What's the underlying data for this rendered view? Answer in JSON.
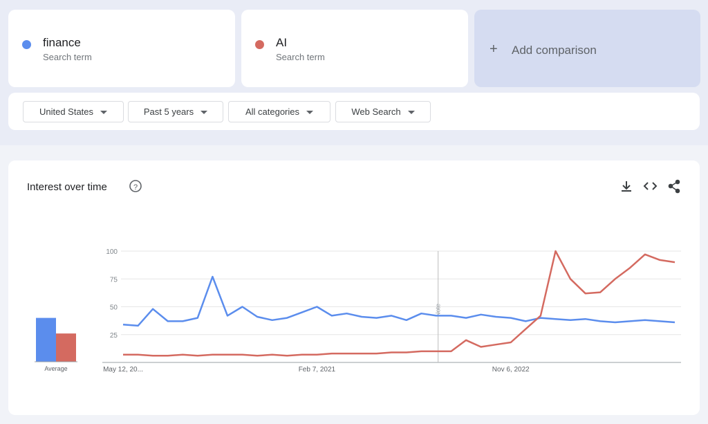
{
  "search_terms": [
    {
      "name": "finance",
      "label": "Search term"
    },
    {
      "name": "AI",
      "label": "Search term"
    }
  ],
  "add_comparison": "Add comparison",
  "filters": [
    "United States",
    "Past 5 years",
    "All categories",
    "Web Search"
  ],
  "chart_data": {
    "type": "line",
    "title": "Interest over time",
    "categories": [
      "May 12, 20...",
      null,
      null,
      null,
      null,
      null,
      null,
      null,
      null,
      null,
      null,
      null,
      null,
      "Feb 7, 2021",
      null,
      null,
      null,
      null,
      null,
      null,
      null,
      null,
      null,
      null,
      null,
      null,
      "Nov 6, 2022",
      null,
      null,
      null,
      null,
      null,
      null,
      null,
      null,
      null,
      null,
      null
    ],
    "series": [
      {
        "name": "finance",
        "color": "#5b8ded",
        "values": [
          34,
          33,
          48,
          37,
          37,
          40,
          77,
          42,
          50,
          41,
          38,
          40,
          45,
          50,
          42,
          44,
          41,
          40,
          42,
          38,
          44,
          42,
          42,
          40,
          43,
          41,
          40,
          37,
          40,
          39,
          38,
          39,
          37,
          36,
          37,
          38,
          37,
          36
        ]
      },
      {
        "name": "AI",
        "color": "#d46a60",
        "values": [
          7,
          7,
          6,
          6,
          7,
          6,
          7,
          7,
          7,
          6,
          7,
          6,
          7,
          7,
          8,
          8,
          8,
          8,
          9,
          9,
          10,
          10,
          10,
          20,
          14,
          16,
          18,
          30,
          42,
          100,
          75,
          62,
          63,
          75,
          85,
          97,
          92,
          90
        ]
      }
    ],
    "ylim": [
      0,
      100
    ],
    "yticks": [
      25,
      50,
      75,
      100
    ],
    "grid": true,
    "annotations": [
      "Note"
    ],
    "average": {
      "label": "Average",
      "values": [
        40,
        26
      ]
    }
  }
}
